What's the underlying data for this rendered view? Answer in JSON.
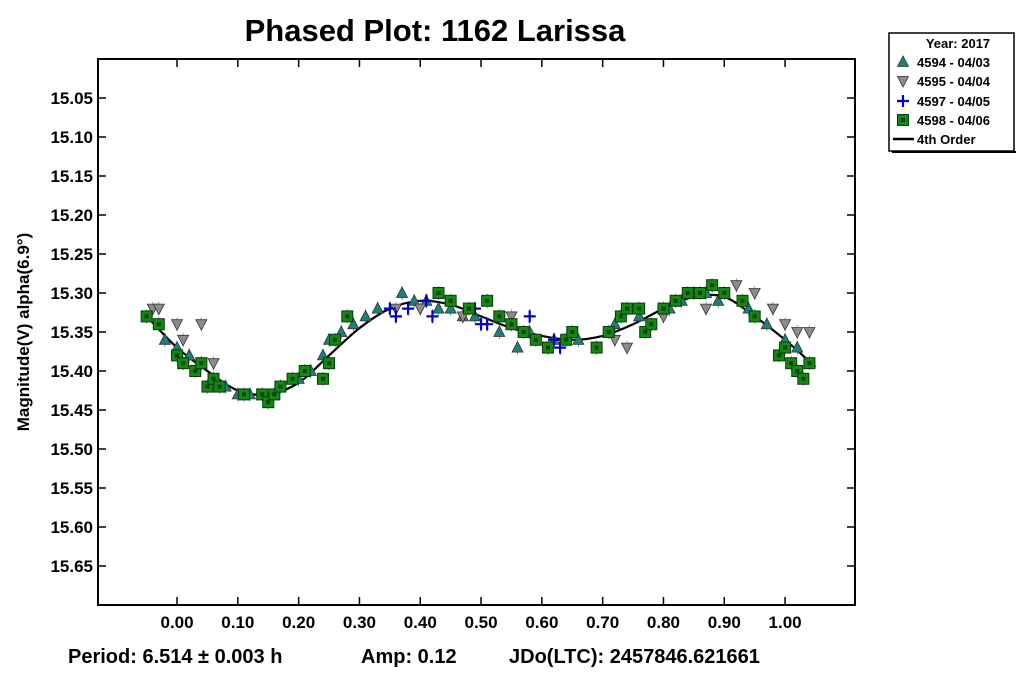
{
  "chart_data": {
    "type": "scatter",
    "title": "Phased Plot: 1162 Larissa",
    "ylabel": "Magnitude(V) alpha(6.9°)",
    "xlabel": "",
    "xlim": [
      -0.13,
      1.115
    ],
    "ylim": [
      15.0,
      15.7
    ],
    "y_inverted": true,
    "x_ticks": [
      "0.00",
      "0.10",
      "0.20",
      "0.30",
      "0.40",
      "0.50",
      "0.60",
      "0.70",
      "0.80",
      "0.90",
      "1.00"
    ],
    "y_ticks": [
      "15.05",
      "15.10",
      "15.15",
      "15.20",
      "15.25",
      "15.30",
      "15.35",
      "15.40",
      "15.45",
      "15.50",
      "15.55",
      "15.60",
      "15.65"
    ],
    "legend_title": "Year: 2017",
    "legend_position": "top-right outside",
    "series": [
      {
        "name": "4594 - 04/03",
        "marker": "triangle-up",
        "color": "#1e7f7a",
        "x": [
          -0.02,
          0.0,
          0.02,
          0.04,
          0.08,
          0.1,
          0.12,
          0.17,
          0.2,
          0.22,
          0.24,
          0.25,
          0.27,
          0.29,
          0.31,
          0.33,
          0.37,
          0.39,
          0.41,
          0.43,
          0.45,
          0.47,
          0.49,
          0.53,
          0.56,
          0.58,
          0.62,
          0.66,
          0.72,
          0.76,
          0.81,
          0.83,
          0.85,
          0.87,
          0.89,
          0.94,
          0.97,
          1.0,
          1.02
        ],
        "y": [
          15.36,
          15.37,
          15.38,
          15.39,
          15.42,
          15.43,
          15.43,
          15.42,
          15.41,
          15.4,
          15.38,
          15.36,
          15.35,
          15.34,
          15.33,
          15.32,
          15.3,
          15.31,
          15.31,
          15.32,
          15.32,
          15.33,
          15.33,
          15.35,
          15.37,
          15.35,
          15.36,
          15.36,
          15.34,
          15.33,
          15.32,
          15.31,
          15.3,
          15.3,
          15.31,
          15.32,
          15.34,
          15.36,
          15.37
        ]
      },
      {
        "name": "4595 - 04/04",
        "marker": "triangle-down",
        "color": "#8c8c8c",
        "x": [
          -0.04,
          -0.03,
          0.0,
          0.01,
          0.04,
          0.06,
          0.36,
          0.4,
          0.47,
          0.55,
          0.57,
          0.61,
          0.69,
          0.72,
          0.74,
          0.8,
          0.87,
          0.92,
          0.95,
          0.98,
          1.0,
          1.02,
          1.04
        ],
        "y": [
          15.32,
          15.32,
          15.34,
          15.36,
          15.34,
          15.39,
          15.32,
          15.32,
          15.33,
          15.33,
          15.35,
          15.37,
          15.37,
          15.36,
          15.37,
          15.33,
          15.32,
          15.29,
          15.3,
          15.32,
          15.34,
          15.35,
          15.35
        ]
      },
      {
        "name": "4597 - 04/05",
        "marker": "plus",
        "color": "#0000cc",
        "x": [
          0.35,
          0.36,
          0.38,
          0.41,
          0.42,
          0.49,
          0.5,
          0.51,
          0.58,
          0.62,
          0.63
        ],
        "y": [
          15.32,
          15.33,
          15.32,
          15.31,
          15.33,
          15.32,
          15.34,
          15.34,
          15.33,
          15.36,
          15.37
        ]
      },
      {
        "name": "4598 - 04/06",
        "marker": "square",
        "color": "#118a11",
        "x": [
          -0.05,
          -0.03,
          0.0,
          0.01,
          0.03,
          0.04,
          0.05,
          0.06,
          0.07,
          0.11,
          0.14,
          0.15,
          0.16,
          0.17,
          0.19,
          0.21,
          0.24,
          0.25,
          0.26,
          0.28,
          0.43,
          0.45,
          0.48,
          0.51,
          0.53,
          0.55,
          0.57,
          0.59,
          0.61,
          0.64,
          0.65,
          0.69,
          0.71,
          0.73,
          0.74,
          0.76,
          0.77,
          0.78,
          0.8,
          0.82,
          0.84,
          0.86,
          0.88,
          0.9,
          0.93,
          0.95,
          0.99,
          1.0,
          1.01,
          1.02,
          1.03,
          1.04
        ],
        "y": [
          15.33,
          15.34,
          15.38,
          15.39,
          15.4,
          15.39,
          15.42,
          15.41,
          15.42,
          15.43,
          15.43,
          15.44,
          15.43,
          15.42,
          15.41,
          15.4,
          15.41,
          15.39,
          15.36,
          15.33,
          15.3,
          15.31,
          15.32,
          15.31,
          15.33,
          15.34,
          15.35,
          15.36,
          15.37,
          15.36,
          15.35,
          15.37,
          15.35,
          15.33,
          15.32,
          15.32,
          15.35,
          15.34,
          15.32,
          15.31,
          15.3,
          15.3,
          15.29,
          15.3,
          15.31,
          15.33,
          15.38,
          15.37,
          15.39,
          15.4,
          15.41,
          15.39
        ]
      }
    ],
    "fit": {
      "name": "4th Order",
      "x": [
        -0.05,
        0.0,
        0.05,
        0.1,
        0.15,
        0.2,
        0.25,
        0.3,
        0.35,
        0.4,
        0.45,
        0.5,
        0.55,
        0.6,
        0.65,
        0.7,
        0.75,
        0.8,
        0.85,
        0.9,
        0.95,
        1.0,
        1.05
      ],
      "y": [
        15.33,
        15.37,
        15.4,
        15.425,
        15.43,
        15.415,
        15.38,
        15.345,
        15.32,
        15.31,
        15.315,
        15.33,
        15.345,
        15.355,
        15.36,
        15.355,
        15.34,
        15.32,
        15.305,
        15.305,
        15.33,
        15.36,
        15.395
      ]
    }
  },
  "footer": {
    "period": "Period: 6.514 ± 0.003 h",
    "amp": "Amp: 0.12",
    "jdo": "JDo(LTC): 2457846.621661"
  },
  "legend_entries": [
    "4594 - 04/03",
    "4595 - 04/04",
    "4597 - 04/05",
    "4598 - 04/06",
    "4th Order"
  ]
}
